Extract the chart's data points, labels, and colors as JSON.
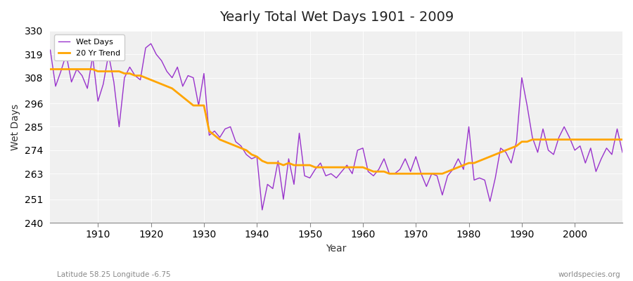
{
  "title": "Yearly Total Wet Days 1901 - 2009",
  "xlabel": "Year",
  "ylabel": "Wet Days",
  "subtitle_left": "Latitude 58.25 Longitude -6.75",
  "subtitle_right": "worldspecies.org",
  "ylim": [
    240,
    330
  ],
  "yticks": [
    240,
    251,
    263,
    274,
    285,
    296,
    308,
    319,
    330
  ],
  "line_color": "#9933CC",
  "trend_color": "#FFA500",
  "bg_color": "#FFFFFF",
  "plot_bg": "#F0F0F0",
  "legend_labels": [
    "Wet Days",
    "20 Yr Trend"
  ],
  "years": [
    1901,
    1902,
    1903,
    1904,
    1905,
    1906,
    1907,
    1908,
    1909,
    1910,
    1911,
    1912,
    1913,
    1914,
    1915,
    1916,
    1917,
    1918,
    1919,
    1920,
    1921,
    1922,
    1923,
    1924,
    1925,
    1926,
    1927,
    1928,
    1929,
    1930,
    1931,
    1932,
    1933,
    1934,
    1935,
    1936,
    1937,
    1938,
    1939,
    1940,
    1941,
    1942,
    1943,
    1944,
    1945,
    1946,
    1947,
    1948,
    1949,
    1950,
    1951,
    1952,
    1953,
    1954,
    1955,
    1956,
    1957,
    1958,
    1959,
    1960,
    1961,
    1962,
    1963,
    1964,
    1965,
    1966,
    1967,
    1968,
    1969,
    1970,
    1971,
    1972,
    1973,
    1974,
    1975,
    1976,
    1977,
    1978,
    1979,
    1980,
    1981,
    1982,
    1983,
    1984,
    1985,
    1986,
    1987,
    1988,
    1989,
    1990,
    1991,
    1992,
    1993,
    1994,
    1995,
    1996,
    1997,
    1998,
    1999,
    2000,
    2001,
    2002,
    2003,
    2004,
    2005,
    2006,
    2007,
    2008,
    2009
  ],
  "wet_days": [
    321,
    304,
    311,
    319,
    306,
    312,
    309,
    303,
    318,
    297,
    305,
    319,
    306,
    285,
    308,
    313,
    309,
    307,
    322,
    324,
    319,
    316,
    311,
    308,
    313,
    304,
    309,
    308,
    295,
    310,
    281,
    283,
    280,
    284,
    285,
    278,
    276,
    272,
    270,
    271,
    246,
    258,
    256,
    269,
    251,
    270,
    258,
    282,
    262,
    261,
    265,
    268,
    262,
    263,
    261,
    264,
    267,
    263,
    274,
    275,
    264,
    262,
    265,
    270,
    263,
    263,
    265,
    270,
    264,
    271,
    263,
    257,
    263,
    262,
    253,
    262,
    265,
    270,
    265,
    285,
    260,
    261,
    260,
    250,
    261,
    275,
    273,
    268,
    278,
    308,
    295,
    280,
    273,
    284,
    274,
    272,
    280,
    285,
    280,
    274,
    276,
    268,
    275,
    264,
    270,
    275,
    272,
    284,
    273
  ],
  "trend": [
    312,
    312,
    312,
    312,
    312,
    312,
    312,
    312,
    312,
    311,
    311,
    311,
    311,
    311,
    310,
    310,
    309,
    309,
    308,
    307,
    306,
    305,
    304,
    303,
    301,
    299,
    297,
    295,
    295,
    295,
    283,
    281,
    279,
    278,
    277,
    276,
    275,
    274,
    272,
    271,
    269,
    268,
    268,
    268,
    267,
    268,
    267,
    267,
    267,
    267,
    266,
    266,
    266,
    266,
    266,
    266,
    266,
    266,
    266,
    266,
    265,
    264,
    264,
    264,
    263,
    263,
    263,
    263,
    263,
    263,
    263,
    263,
    263,
    263,
    263,
    264,
    265,
    266,
    267,
    268,
    268,
    269,
    270,
    271,
    272,
    273,
    274,
    275,
    276,
    278,
    278,
    279,
    279,
    279,
    279,
    279,
    279,
    279,
    279,
    279,
    279,
    279,
    279,
    279,
    279,
    279,
    279,
    279,
    279
  ]
}
